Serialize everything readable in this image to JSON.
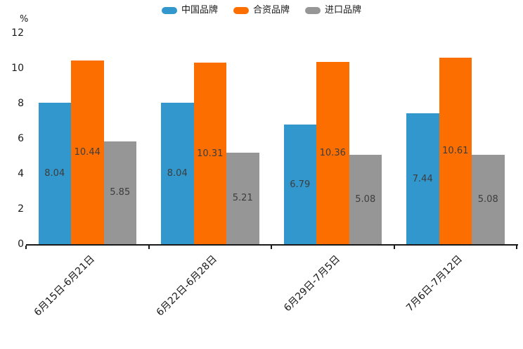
{
  "chart_data": {
    "type": "bar",
    "title": "",
    "unit_label": "%",
    "categories": [
      "6月15日-6月21日",
      "6月22日-6月28日",
      "6月29日-7月5日",
      "7月6日-7月12日"
    ],
    "series": [
      {
        "name": "中国品牌",
        "color": "#3197CC",
        "values": [
          8.04,
          8.04,
          6.79,
          7.44
        ]
      },
      {
        "name": "合资品牌",
        "color": "#FC6E00",
        "values": [
          10.44,
          10.31,
          10.36,
          10.61
        ]
      },
      {
        "name": "进口品牌",
        "color": "#969696",
        "values": [
          5.85,
          5.21,
          5.08,
          5.08
        ]
      }
    ],
    "ylim": [
      0,
      12
    ],
    "yticks": [
      0,
      2,
      4,
      6,
      8,
      10,
      12
    ],
    "legend_position": "top-center",
    "grid": false,
    "value_labels": "inside-center",
    "xtick_label_rotation_deg": 45
  }
}
